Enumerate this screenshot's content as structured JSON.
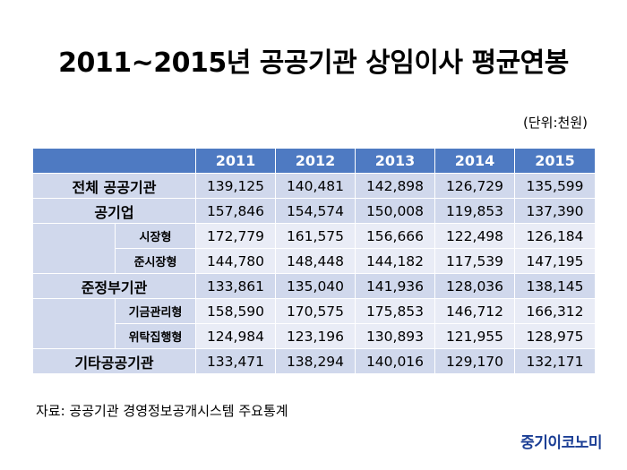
{
  "title": "2011~2015년 공공기관 상임이사 평균연봉",
  "unit": "(단위:천원)",
  "table": {
    "years": [
      "2011",
      "2012",
      "2013",
      "2014",
      "2015"
    ],
    "rows": [
      {
        "label": "전체 공공기관",
        "type": "major",
        "values": [
          "139,125",
          "140,481",
          "142,898",
          "126,729",
          "135,599"
        ]
      },
      {
        "label": "공기업",
        "type": "major",
        "values": [
          "157,846",
          "154,574",
          "150,008",
          "119,853",
          "137,390"
        ]
      },
      {
        "label": "시장형",
        "type": "sub",
        "values": [
          "172,779",
          "161,575",
          "156,666",
          "122,498",
          "126,184"
        ]
      },
      {
        "label": "준시장형",
        "type": "sub",
        "values": [
          "144,780",
          "148,448",
          "144,182",
          "117,539",
          "147,195"
        ]
      },
      {
        "label": "준정부기관",
        "type": "major",
        "values": [
          "133,861",
          "135,040",
          "141,936",
          "128,036",
          "138,145"
        ]
      },
      {
        "label": "기금관리형",
        "type": "sub",
        "values": [
          "158,590",
          "170,575",
          "175,853",
          "146,712",
          "166,312"
        ]
      },
      {
        "label": "위탁집행형",
        "type": "sub",
        "values": [
          "124,984",
          "123,196",
          "130,893",
          "121,955",
          "128,975"
        ]
      },
      {
        "label": "기타공공기관",
        "type": "major",
        "values": [
          "133,471",
          "138,294",
          "140,016",
          "129,170",
          "132,171"
        ]
      }
    ]
  },
  "source": "자료: 공공기관 경영정보공개시스템 주요통계",
  "logo": "중기이코노미"
}
